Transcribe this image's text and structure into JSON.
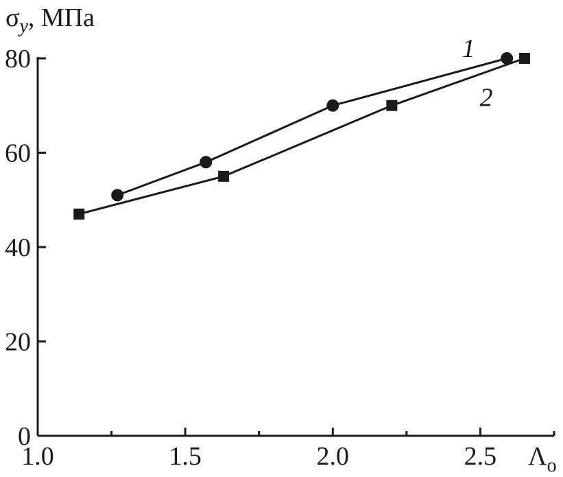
{
  "chart_data": {
    "type": "line",
    "title": "",
    "ylabel": {
      "symbol": "σ",
      "subscript": "y",
      "unit": ", МПа"
    },
    "xlabel": {
      "symbol": "Λ",
      "subscript": "o"
    },
    "xlim": [
      1.0,
      2.75
    ],
    "ylim": [
      0,
      80
    ],
    "xticks": [
      {
        "value": 1.0,
        "label": "1.0"
      },
      {
        "value": 1.5,
        "label": "1.5"
      },
      {
        "value": 2.0,
        "label": "2.0"
      },
      {
        "value": 2.5,
        "label": "2.5"
      }
    ],
    "xminor": [
      1.25,
      1.75,
      2.25,
      2.75
    ],
    "yticks": [
      {
        "value": 0,
        "label": "0"
      },
      {
        "value": 20,
        "label": "20"
      },
      {
        "value": 40,
        "label": "40"
      },
      {
        "value": 60,
        "label": "60"
      },
      {
        "value": 80,
        "label": "80"
      }
    ],
    "grid": false,
    "series": [
      {
        "name": "1",
        "marker": "circle",
        "points": [
          {
            "x": 1.27,
            "y": 51
          },
          {
            "x": 1.57,
            "y": 58
          },
          {
            "x": 2.0,
            "y": 70
          },
          {
            "x": 2.59,
            "y": 80
          }
        ]
      },
      {
        "name": "2",
        "marker": "square",
        "points": [
          {
            "x": 1.14,
            "y": 47
          },
          {
            "x": 1.63,
            "y": 55
          },
          {
            "x": 2.2,
            "y": 70
          },
          {
            "x": 2.65,
            "y": 80
          }
        ]
      }
    ],
    "colors": {
      "line": "#1a1a1a",
      "marker": "#1a1a1a"
    }
  }
}
